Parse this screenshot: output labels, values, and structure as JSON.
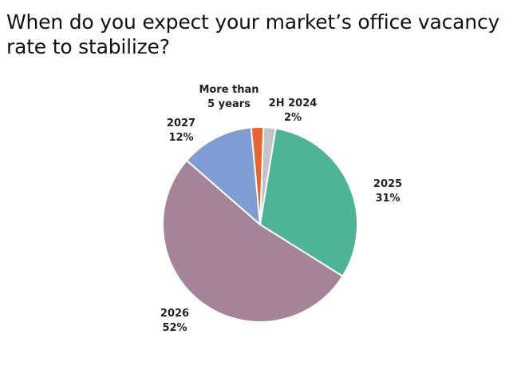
{
  "title": "When do you expect your market’s office vacancy rate to stabilize?",
  "chart_data": {
    "type": "pie",
    "title": "When do you expect your market’s office vacancy rate to stabilize?",
    "start_angle_deg": 2,
    "direction": "clockwise",
    "slices": [
      {
        "name": "2H 2024",
        "label_lines": [
          "2H 2024",
          "2%"
        ],
        "value": 2,
        "color": "#c4c4c4"
      },
      {
        "name": "2025",
        "label_lines": [
          "2025",
          "31%"
        ],
        "value": 31,
        "color": "#4db596"
      },
      {
        "name": "2026",
        "label_lines": [
          "2026",
          "52%"
        ],
        "value": 52,
        "color": "#a58499"
      },
      {
        "name": "2027",
        "label_lines": [
          "2027",
          "12%"
        ],
        "value": 12,
        "color": "#7f9dd4"
      },
      {
        "name": "More than 5 years",
        "label_lines": [
          "More than",
          "5 years"
        ],
        "value": 2,
        "color": "#e8642c"
      }
    ]
  }
}
